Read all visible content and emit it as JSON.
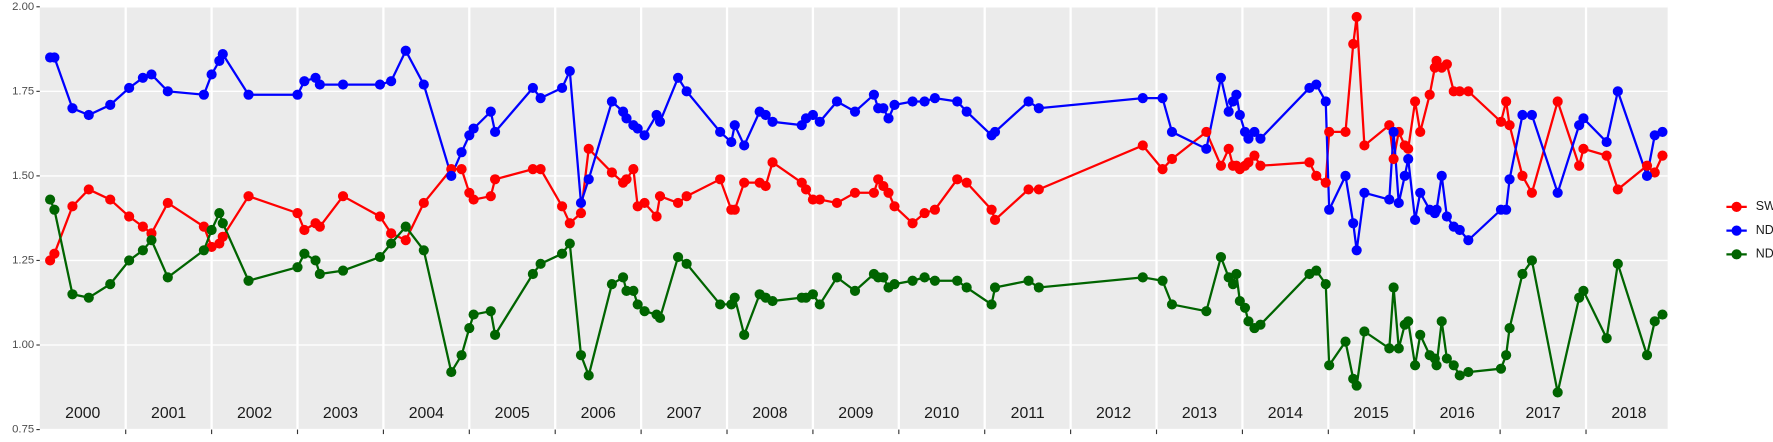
{
  "chart_data": {
    "type": "line",
    "x": [
      2000.12,
      2000.17,
      2000.38,
      2000.57,
      2000.82,
      2001.04,
      2001.2,
      2001.3,
      2001.49,
      2001.91,
      2002,
      2002.09,
      2002.13,
      2002.43,
      2003,
      2003.08,
      2003.21,
      2003.26,
      2003.53,
      2003.96,
      2004.09,
      2004.26,
      2004.47,
      2004.79,
      2004.91,
      2005,
      2005.05,
      2005.25,
      2005.3,
      2005.74,
      2005.83,
      2006.08,
      2006.17,
      2006.3,
      2006.39,
      2006.66,
      2006.79,
      2006.83,
      2006.91,
      2006.96,
      2007.04,
      2007.18,
      2007.22,
      2007.43,
      2007.53,
      2007.92,
      2008.05,
      2008.09,
      2008.2,
      2008.38,
      2008.45,
      2008.53,
      2008.87,
      2008.92,
      2009,
      2009.08,
      2009.28,
      2009.49,
      2009.71,
      2009.76,
      2009.82,
      2009.88,
      2009.95,
      2010.16,
      2010.3,
      2010.42,
      2010.68,
      2010.79,
      2011.08,
      2011.12,
      2011.51,
      2011.63,
      2012.84,
      2013.07,
      2013.18,
      2013.58,
      2013.75,
      2013.84,
      2013.89,
      2013.93,
      2013.97,
      2014.03,
      2014.07,
      2014.14,
      2014.21,
      2014.78,
      2014.86,
      2014.97,
      2015.01,
      2015.2,
      2015.29,
      2015.33,
      2015.42,
      2015.71,
      2015.76,
      2015.82,
      2015.89,
      2015.93,
      2016.01,
      2016.07,
      2016.18,
      2016.24,
      2016.26,
      2016.32,
      2016.38,
      2016.46,
      2016.53,
      2016.63,
      2017.01,
      2017.07,
      2017.11,
      2017.26,
      2017.37,
      2017.67,
      2017.92,
      2017.97,
      2018.24,
      2018.37,
      2018.71,
      2018.8,
      2018.89
    ],
    "series": [
      {
        "name": "SWIR",
        "color": "#ff0000",
        "values": [
          1.25,
          1.27,
          1.41,
          1.46,
          1.43,
          1.38,
          1.35,
          1.33,
          1.42,
          1.35,
          1.29,
          1.3,
          1.32,
          1.44,
          1.39,
          1.34,
          1.36,
          1.35,
          1.44,
          1.38,
          1.33,
          1.31,
          1.42,
          1.52,
          1.52,
          1.45,
          1.43,
          1.44,
          1.49,
          1.52,
          1.52,
          1.41,
          1.36,
          1.39,
          1.58,
          1.51,
          1.48,
          1.49,
          1.52,
          1.41,
          1.42,
          1.38,
          1.44,
          1.42,
          1.44,
          1.49,
          1.4,
          1.4,
          1.48,
          1.48,
          1.47,
          1.54,
          1.48,
          1.46,
          1.43,
          1.43,
          1.42,
          1.45,
          1.45,
          1.49,
          1.47,
          1.45,
          1.41,
          1.36,
          1.39,
          1.4,
          1.49,
          1.48,
          1.4,
          1.37,
          1.46,
          1.46,
          1.59,
          1.52,
          1.55,
          1.63,
          1.53,
          1.58,
          1.53,
          1.53,
          1.52,
          1.53,
          1.54,
          1.56,
          1.53,
          1.54,
          1.5,
          1.48,
          1.63,
          1.63,
          1.89,
          1.97,
          1.59,
          1.65,
          1.55,
          1.63,
          1.59,
          1.58,
          1.72,
          1.63,
          1.74,
          1.82,
          1.84,
          1.82,
          1.83,
          1.75,
          1.75,
          1.75,
          1.66,
          1.72,
          1.65,
          1.5,
          1.45,
          1.72,
          1.53,
          1.58,
          1.56,
          1.46,
          1.53,
          1.51,
          1.56
        ]
      },
      {
        "name": "NDVI",
        "color": "#0000ff",
        "values": [
          1.85,
          1.85,
          1.7,
          1.68,
          1.71,
          1.76,
          1.79,
          1.8,
          1.75,
          1.74,
          1.8,
          1.84,
          1.86,
          1.74,
          1.74,
          1.78,
          1.79,
          1.77,
          1.77,
          1.77,
          1.78,
          1.87,
          1.77,
          1.5,
          1.57,
          1.62,
          1.64,
          1.69,
          1.63,
          1.76,
          1.73,
          1.76,
          1.81,
          1.42,
          1.49,
          1.72,
          1.69,
          1.67,
          1.65,
          1.64,
          1.62,
          1.68,
          1.66,
          1.79,
          1.75,
          1.63,
          1.6,
          1.65,
          1.59,
          1.69,
          1.68,
          1.66,
          1.65,
          1.67,
          1.68,
          1.66,
          1.72,
          1.69,
          1.74,
          1.7,
          1.7,
          1.67,
          1.71,
          1.72,
          1.72,
          1.73,
          1.72,
          1.69,
          1.62,
          1.63,
          1.72,
          1.7,
          1.73,
          1.73,
          1.63,
          1.58,
          1.79,
          1.69,
          1.72,
          1.74,
          1.68,
          1.63,
          1.61,
          1.63,
          1.61,
          1.76,
          1.77,
          1.72,
          1.4,
          1.5,
          1.36,
          1.28,
          1.45,
          1.43,
          1.63,
          1.42,
          1.5,
          1.55,
          1.37,
          1.45,
          1.4,
          1.39,
          1.4,
          1.5,
          1.38,
          1.35,
          1.34,
          1.31,
          1.4,
          1.4,
          1.49,
          1.68,
          1.68,
          1.45,
          1.65,
          1.67,
          1.6,
          1.75,
          1.5,
          1.62,
          1.63
        ]
      },
      {
        "name": "NDWI",
        "color": "#006400",
        "values": [
          1.43,
          1.4,
          1.15,
          1.14,
          1.18,
          1.25,
          1.28,
          1.31,
          1.2,
          1.28,
          1.34,
          1.39,
          1.36,
          1.19,
          1.23,
          1.27,
          1.25,
          1.21,
          1.22,
          1.26,
          1.3,
          1.35,
          1.28,
          0.92,
          0.97,
          1.05,
          1.09,
          1.1,
          1.03,
          1.21,
          1.24,
          1.27,
          1.3,
          0.97,
          0.91,
          1.18,
          1.2,
          1.16,
          1.16,
          1.12,
          1.1,
          1.09,
          1.08,
          1.26,
          1.24,
          1.12,
          1.12,
          1.14,
          1.03,
          1.15,
          1.14,
          1.13,
          1.14,
          1.14,
          1.15,
          1.12,
          1.2,
          1.16,
          1.21,
          1.2,
          1.2,
          1.17,
          1.18,
          1.19,
          1.2,
          1.19,
          1.19,
          1.17,
          1.12,
          1.17,
          1.19,
          1.17,
          1.2,
          1.19,
          1.12,
          1.1,
          1.26,
          1.2,
          1.18,
          1.21,
          1.13,
          1.11,
          1.07,
          1.05,
          1.06,
          1.21,
          1.22,
          1.18,
          0.94,
          1.01,
          0.9,
          0.88,
          1.04,
          0.99,
          1.17,
          0.99,
          1.06,
          1.07,
          0.94,
          1.03,
          0.97,
          0.96,
          0.94,
          1.07,
          0.96,
          0.94,
          0.91,
          0.92,
          0.93,
          0.97,
          1.05,
          1.21,
          1.25,
          0.86,
          1.14,
          1.16,
          1.02,
          1.24,
          0.97,
          1.07,
          1.09
        ]
      }
    ],
    "xlim": [
      2000,
      2018.95
    ],
    "xticks": [
      {
        "value": 2000.5,
        "label": "2000"
      },
      {
        "value": 2001.5,
        "label": "2001"
      },
      {
        "value": 2002.5,
        "label": "2002"
      },
      {
        "value": 2003.5,
        "label": "2003"
      },
      {
        "value": 2004.5,
        "label": "2004"
      },
      {
        "value": 2005.5,
        "label": "2005"
      },
      {
        "value": 2006.5,
        "label": "2006"
      },
      {
        "value": 2007.5,
        "label": "2007"
      },
      {
        "value": 2008.5,
        "label": "2008"
      },
      {
        "value": 2009.5,
        "label": "2009"
      },
      {
        "value": 2010.5,
        "label": "2010"
      },
      {
        "value": 2011.5,
        "label": "2011"
      },
      {
        "value": 2012.5,
        "label": "2012"
      },
      {
        "value": 2013.5,
        "label": "2013"
      },
      {
        "value": 2014.5,
        "label": "2014"
      },
      {
        "value": 2015.5,
        "label": "2015"
      },
      {
        "value": 2016.5,
        "label": "2016"
      },
      {
        "value": 2017.5,
        "label": "2017"
      },
      {
        "value": 2018.5,
        "label": "2018"
      }
    ],
    "xbreaks": [
      2001,
      2002,
      2003,
      2004,
      2005,
      2006,
      2007,
      2008,
      2009,
      2010,
      2011,
      2012,
      2013,
      2014,
      2015,
      2016,
      2017,
      2018
    ],
    "ylim": [
      0.75,
      2.0
    ],
    "yticks": [
      {
        "value": 0.75,
        "label": "0.75"
      },
      {
        "value": 1,
        "label": "1.00"
      },
      {
        "value": 1.25,
        "label": "1.25"
      },
      {
        "value": 1.5,
        "label": "1.50"
      },
      {
        "value": 1.75,
        "label": "1.75"
      },
      {
        "value": 2,
        "label": "2.00"
      }
    ],
    "grid": true,
    "legend": "right"
  }
}
